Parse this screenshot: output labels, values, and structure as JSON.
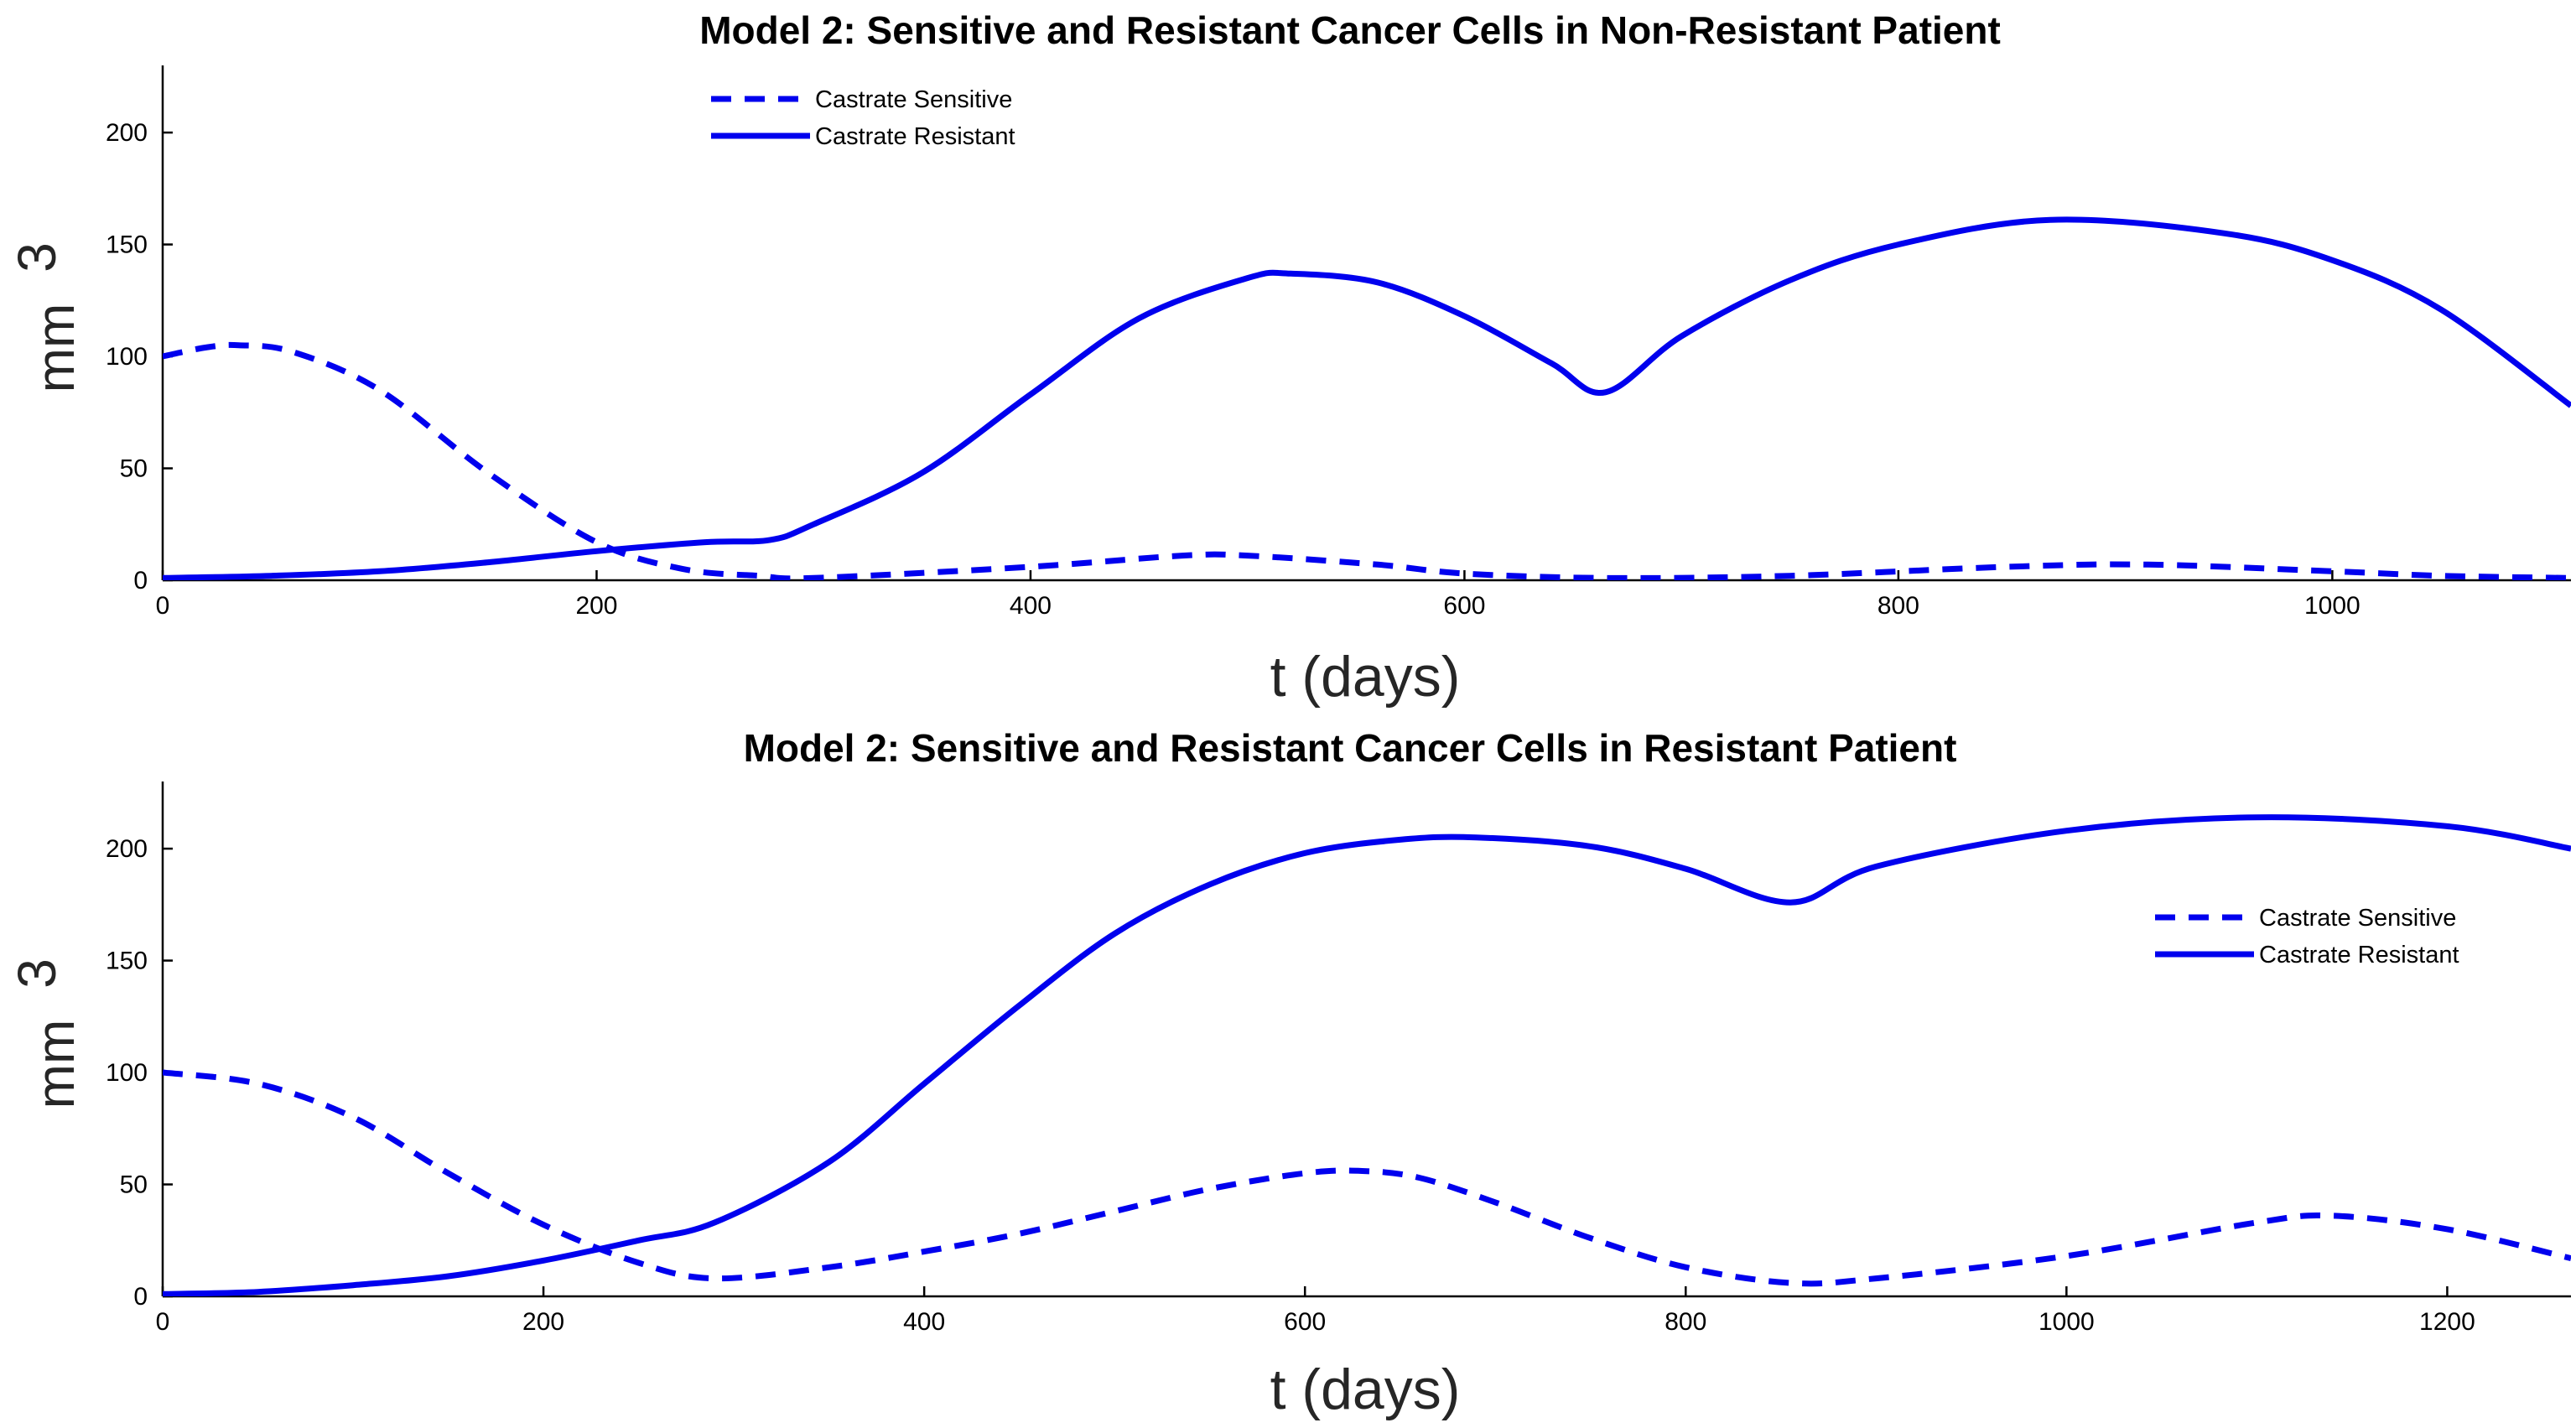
{
  "chart_data": [
    {
      "type": "line",
      "title": "Model 2: Sensitive and Resistant Cancer Cells in Non-Resistant Patient",
      "xlabel": "t (days)",
      "ylabel": "mm",
      "ylabel_exponent": "3",
      "xlim": [
        0,
        1110
      ],
      "ylim": [
        0,
        230
      ],
      "xticks": [
        0,
        200,
        400,
        600,
        800,
        1000
      ],
      "yticks": [
        0,
        50,
        100,
        150,
        200
      ],
      "legend_position": "top-center",
      "color": "#0000ee",
      "series": [
        {
          "name": "Castrate Sensitive",
          "style": "dashed",
          "x": [
            0,
            20,
            35,
            60,
            100,
            150,
            200,
            240,
            275,
            300,
            400,
            470,
            500,
            560,
            600,
            665,
            750,
            850,
            915,
            1000,
            1050,
            1110
          ],
          "y": [
            100,
            104,
            105,
            102,
            85,
            48,
            17,
            5,
            2,
            1,
            6,
            11,
            11,
            7,
            3,
            1,
            2,
            6,
            7,
            4,
            2,
            1
          ]
        },
        {
          "name": "Castrate Resistant",
          "style": "solid",
          "x": [
            0,
            50,
            100,
            150,
            200,
            250,
            280,
            300,
            350,
            400,
            450,
            500,
            520,
            560,
            600,
            640,
            665,
            700,
            750,
            800,
            870,
            950,
            1000,
            1050,
            1110
          ],
          "y": [
            1,
            2,
            4,
            8,
            13,
            17,
            18,
            25,
            48,
            83,
            117,
            135,
            137,
            133,
            118,
            97,
            84,
            109,
            134,
            150,
            161,
            155,
            143,
            121,
            78
          ]
        }
      ]
    },
    {
      "type": "line",
      "title": "Model 2: Sensitive and Resistant Cancer Cells in Resistant Patient",
      "xlabel": "t (days)",
      "ylabel": "mm",
      "ylabel_exponent": "3",
      "xlim": [
        0,
        1265
      ],
      "ylim": [
        0,
        230
      ],
      "xticks": [
        0,
        200,
        400,
        600,
        800,
        1000,
        1200
      ],
      "yticks": [
        0,
        50,
        100,
        150,
        200
      ],
      "legend_position": "top-right",
      "color": "#0000ee",
      "series": [
        {
          "name": "Castrate Sensitive",
          "style": "dashed",
          "x": [
            0,
            50,
            100,
            150,
            200,
            250,
            290,
            350,
            400,
            450,
            500,
            550,
            600,
            630,
            660,
            700,
            750,
            800,
            855,
            900,
            1000,
            1100,
            1140,
            1200,
            1265
          ],
          "y": [
            100,
            95,
            80,
            55,
            32,
            15,
            8,
            13,
            20,
            28,
            38,
            48,
            55,
            56,
            53,
            42,
            26,
            13,
            6,
            8,
            18,
            33,
            36,
            30,
            17
          ]
        },
        {
          "name": "Castrate Resistant",
          "style": "solid",
          "x": [
            0,
            50,
            100,
            150,
            200,
            250,
            290,
            350,
            400,
            450,
            500,
            550,
            600,
            650,
            690,
            750,
            800,
            855,
            900,
            1000,
            1100,
            1200,
            1265
          ],
          "y": [
            1,
            2,
            5,
            9,
            16,
            25,
            33,
            60,
            95,
            130,
            162,
            184,
            198,
            204,
            205,
            201,
            191,
            176,
            192,
            208,
            214,
            210,
            200
          ]
        }
      ]
    }
  ]
}
